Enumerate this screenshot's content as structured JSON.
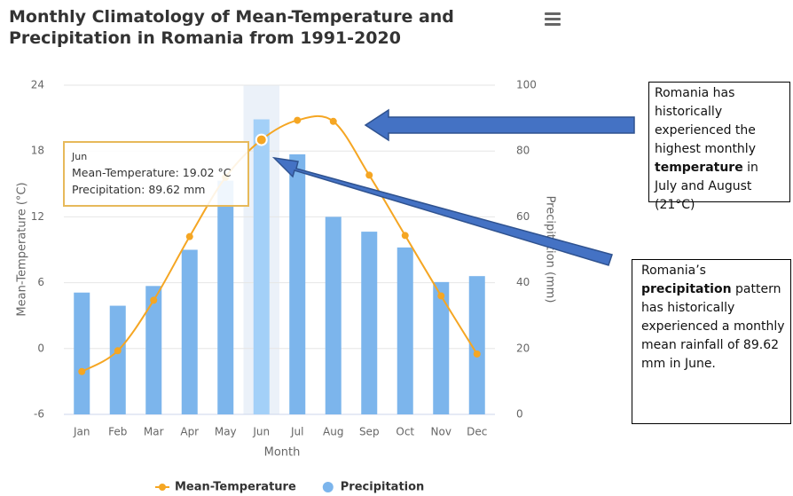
{
  "chart_data": {
    "type": "combo",
    "title": "Monthly Climatology of Mean-Temperature and Precipitation in Romania from 1991-2020",
    "xlabel": "Month",
    "ylabel": "Mean-Temperature (°C)",
    "y2label": "Precipitation (mm)",
    "categories": [
      "Jan",
      "Feb",
      "Mar",
      "Apr",
      "May",
      "Jun",
      "Jul",
      "Aug",
      "Sep",
      "Oct",
      "Nov",
      "Dec"
    ],
    "series": [
      {
        "name": "Mean-Temperature",
        "type": "line",
        "color": "#f5a623",
        "axis": "y",
        "values": [
          -2.1,
          -0.2,
          4.4,
          10.2,
          15.6,
          19.02,
          20.8,
          20.7,
          15.8,
          10.3,
          4.8,
          -0.5
        ]
      },
      {
        "name": "Precipitation",
        "type": "bar",
        "color": "#7cb5ec",
        "axis": "y2",
        "values": [
          37,
          33,
          39,
          50,
          71,
          89.62,
          79,
          60,
          55.5,
          50.7,
          40.2,
          42
        ]
      }
    ],
    "ylim": [
      -6,
      24
    ],
    "yticks": [
      -6,
      0,
      6,
      12,
      18,
      24
    ],
    "y2lim": [
      0,
      100
    ],
    "y2ticks": [
      0,
      20,
      40,
      60,
      80,
      100
    ],
    "grid": true,
    "legend": "bottom",
    "highlight": 5,
    "tooltip": {
      "title": "Jun",
      "lines": [
        "Mean-Temperature: 19.02 °C",
        "Precipitation: 89.62 mm"
      ]
    }
  },
  "annotations": [
    {
      "parts": [
        {
          "text": "Romania has historically experienced the highest monthly "
        },
        {
          "text": "temperature",
          "bold": true
        },
        {
          "text": " in July and August (21°C)"
        }
      ]
    },
    {
      "parts": [
        {
          "text": "Romania’s "
        },
        {
          "text": "precipitation",
          "bold": true
        },
        {
          "text": " pattern has historically experienced a monthly mean rainfall of 89.62 mm in June."
        }
      ]
    }
  ]
}
